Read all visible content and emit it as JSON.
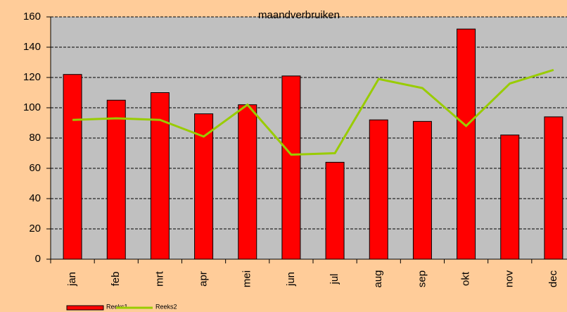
{
  "chart_data": {
    "type": "bar-line",
    "title": "maandverbruiken",
    "categories": [
      "jan",
      "feb",
      "mrt",
      "apr",
      "mei",
      "jun",
      "jul",
      "aug",
      "sep",
      "okt",
      "nov",
      "dec"
    ],
    "series": [
      {
        "name": "Reeks1",
        "type": "bar",
        "color": "#ff0000",
        "values": [
          122,
          105,
          110,
          96,
          102,
          121,
          64,
          92,
          91,
          152,
          82,
          94
        ]
      },
      {
        "name": "Reeks2",
        "type": "line",
        "color": "#99cc00",
        "values": [
          92,
          93,
          92,
          81,
          102,
          69,
          70,
          119,
          113,
          88,
          116,
          125
        ]
      }
    ],
    "ylim": [
      0,
      160
    ],
    "yticks": [
      0,
      20,
      40,
      60,
      80,
      100,
      120,
      140,
      160
    ],
    "grid": true,
    "legend": "bottom-left"
  }
}
